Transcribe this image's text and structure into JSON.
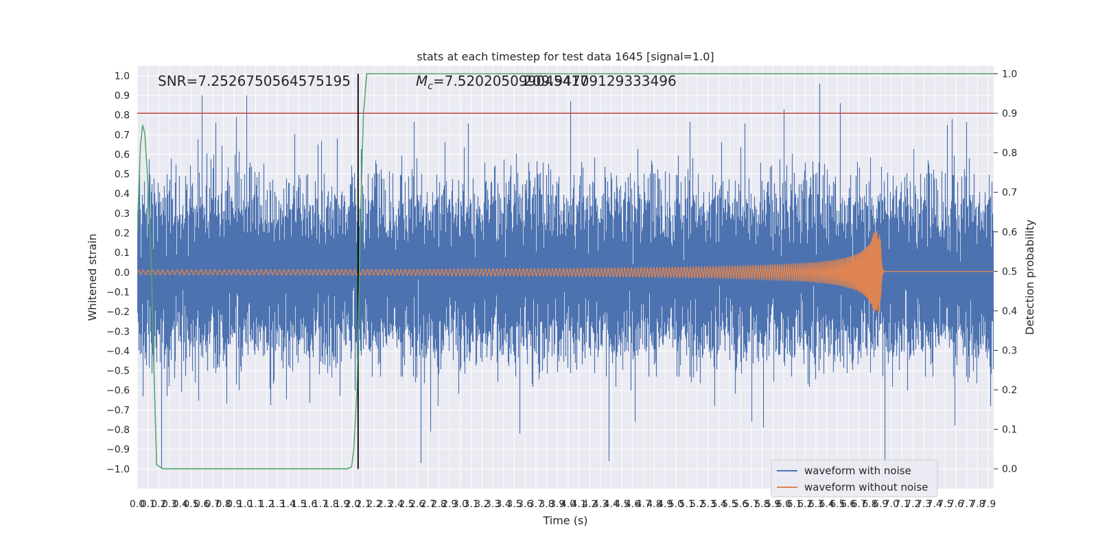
{
  "chart_data": {
    "type": "line",
    "title": "stats at each timestep for test data 1645 [signal=1.0]",
    "xlabel": "Time (s)",
    "ylabel_left": "Whitened strain",
    "ylabel_right": "Detection probability",
    "xlim": [
      0.0,
      7.95
    ],
    "ylim_left": [
      -1.1,
      1.05
    ],
    "ylim_right": [
      -0.05,
      1.02
    ],
    "x_ticks": [
      0.0,
      0.1,
      0.2,
      0.3,
      0.4,
      0.5,
      0.6,
      0.7,
      0.8,
      0.9,
      1.0,
      1.1,
      1.2,
      1.3,
      1.4,
      1.5,
      1.6,
      1.7,
      1.8,
      1.9,
      2.0,
      2.1,
      2.2,
      2.3,
      2.4,
      2.5,
      2.6,
      2.7,
      2.8,
      2.9,
      3.0,
      3.1,
      3.2,
      3.3,
      3.4,
      3.5,
      3.6,
      3.7,
      3.8,
      3.9,
      4.0,
      4.1,
      4.2,
      4.3,
      4.4,
      4.5,
      4.6,
      4.7,
      4.8,
      4.9,
      5.0,
      5.1,
      5.2,
      5.3,
      5.4,
      5.5,
      5.6,
      5.7,
      5.8,
      5.9,
      6.0,
      6.1,
      6.2,
      6.3,
      6.4,
      6.5,
      6.6,
      6.7,
      6.8,
      6.9,
      7.0,
      7.1,
      7.2,
      7.3,
      7.4,
      7.5,
      7.6,
      7.7,
      7.8,
      7.9
    ],
    "y_ticks_left": [
      1.0,
      0.9,
      0.8,
      0.7,
      0.6,
      0.5,
      0.4,
      0.3,
      0.2,
      0.1,
      0.0,
      -0.1,
      -0.2,
      -0.3,
      -0.4,
      -0.5,
      -0.6,
      -0.7,
      -0.8,
      -0.9,
      -1.0
    ],
    "y_ticks_right": [
      1.0,
      0.9,
      0.8,
      0.7,
      0.6,
      0.5,
      0.4,
      0.3,
      0.2,
      0.1,
      0.0
    ],
    "annotations": {
      "snr": "SNR=7.2526750564575195",
      "mc": "M_c=7.520205099045417",
      "overlap": "209.94709129333496"
    },
    "threshold_probability": 0.9,
    "detection_time": 2.05,
    "series": [
      {
        "name": "waveform with noise",
        "color": "#4c72b0",
        "kind": "noise",
        "noise_sigma": 0.2,
        "sample_rate_hz": 2048,
        "spikes": [
          {
            "t": 0.6,
            "v": 0.9
          },
          {
            "t": 1.01,
            "v": 0.9
          },
          {
            "t": 0.92,
            "v": 0.79
          },
          {
            "t": 4.02,
            "v": 0.87
          },
          {
            "t": 6.33,
            "v": 0.96
          },
          {
            "t": 6.52,
            "v": 0.86
          },
          {
            "t": 6.0,
            "v": 0.83
          },
          {
            "t": 7.56,
            "v": 0.78
          },
          {
            "t": 7.52,
            "v": 0.75
          },
          {
            "t": 0.22,
            "v": -1.0
          },
          {
            "t": 2.63,
            "v": -0.97
          },
          {
            "t": 2.72,
            "v": -0.81
          },
          {
            "t": 3.55,
            "v": -0.82
          },
          {
            "t": 5.81,
            "v": -0.79
          },
          {
            "t": 4.62,
            "v": -0.76
          },
          {
            "t": 7.59,
            "v": -0.78
          },
          {
            "t": 5.7,
            "v": -0.76
          }
        ]
      },
      {
        "name": "waveform without noise",
        "color": "#dd8452",
        "kind": "chirp",
        "amp_start": 0.012,
        "amp_peak": 0.21,
        "merger_time": 6.9,
        "ringdown_level": 0.004
      },
      {
        "name": "detection probability",
        "color": "#55a868",
        "axis": "right",
        "x": [
          0.0,
          0.03,
          0.05,
          0.07,
          0.1,
          0.13,
          0.16,
          0.18,
          0.24,
          1.95,
          1.99,
          2.01,
          2.04,
          2.07,
          2.1,
          2.13,
          7.95
        ],
        "y": [
          0.6,
          0.82,
          0.87,
          0.85,
          0.72,
          0.52,
          0.2,
          0.01,
          0.0,
          0.0,
          0.005,
          0.05,
          0.2,
          0.6,
          0.9,
          1.0,
          1.0
        ]
      }
    ],
    "legend": {
      "position": "lower-right",
      "entries": [
        {
          "label": "waveform with noise",
          "color": "#4c72b0"
        },
        {
          "label": "waveform without noise",
          "color": "#dd8452"
        }
      ]
    },
    "colors": {
      "axes_bg": "#eaeaf2",
      "grid": "#ffffff",
      "threshold": "#c44e52",
      "detection_marker": "#000000"
    }
  }
}
